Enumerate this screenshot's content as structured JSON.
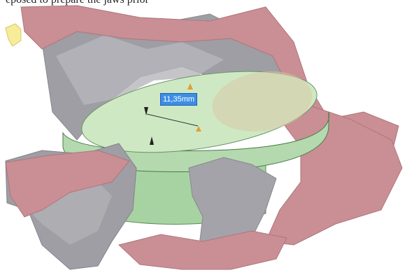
{
  "header_clipped_text": "eposed to prepare  the jaws prior",
  "measurement": {
    "value_label": "11,35mm"
  },
  "colors": {
    "background": "#ffffff",
    "tissue_gray": "#9e9ea4",
    "tissue_pink": "#c98f95",
    "implant_green": "#a7d3a3",
    "implant_top": "#cfe8c4",
    "dimension_label_bg": "#3d8ee6",
    "handle": "#e0a030"
  },
  "icons": {
    "corner_marker": "yellow-arrow-icon",
    "dimension_handle": "orange-triangle-icon"
  }
}
